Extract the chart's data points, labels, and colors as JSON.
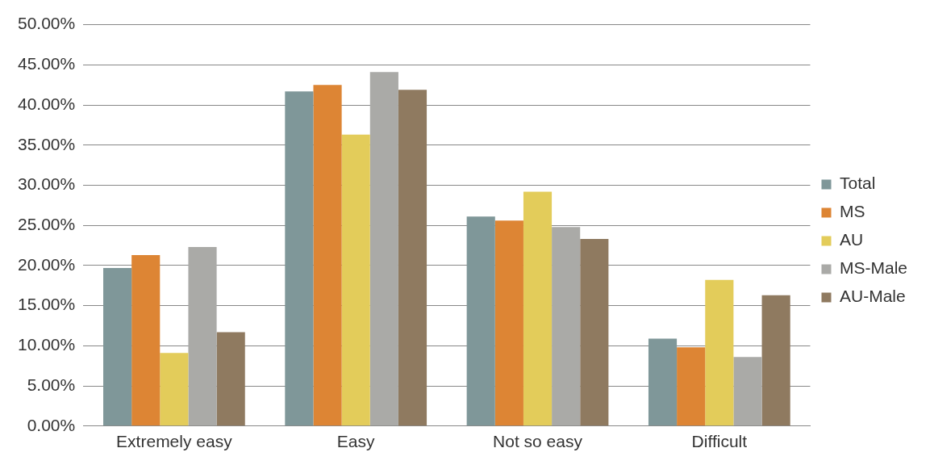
{
  "chart_data": {
    "type": "bar",
    "categories": [
      "Extremely easy",
      "Easy",
      "Not so easy",
      "Difficult"
    ],
    "series": [
      {
        "name": "Total",
        "color": "#7f9799",
        "values": [
          19.7,
          41.7,
          26.1,
          10.9
        ]
      },
      {
        "name": "MS",
        "color": "#dd8534",
        "values": [
          21.3,
          42.5,
          25.6,
          9.8
        ]
      },
      {
        "name": "AU",
        "color": "#e3cc5a",
        "values": [
          9.1,
          36.3,
          29.2,
          18.2
        ]
      },
      {
        "name": "MS-Male",
        "color": "#aaaaa7",
        "values": [
          22.3,
          44.1,
          24.8,
          8.6
        ]
      },
      {
        "name": "AU-Male",
        "color": "#8f7a60",
        "values": [
          11.7,
          41.9,
          23.3,
          16.3
        ]
      }
    ],
    "ylim": [
      0,
      50
    ],
    "yticks": [
      {
        "value": 0,
        "label": "0.00%"
      },
      {
        "value": 5,
        "label": "5.00%"
      },
      {
        "value": 10,
        "label": "10.00%"
      },
      {
        "value": 15,
        "label": "15.00%"
      },
      {
        "value": 20,
        "label": "20.00%"
      },
      {
        "value": 25,
        "label": "25.00%"
      },
      {
        "value": 30,
        "label": "30.00%"
      },
      {
        "value": 35,
        "label": "35.00%"
      },
      {
        "value": 40,
        "label": "40.00%"
      },
      {
        "value": 45,
        "label": "45.00%"
      },
      {
        "value": 50,
        "label": "50.00%"
      }
    ],
    "grid": "y",
    "legend": "right"
  }
}
